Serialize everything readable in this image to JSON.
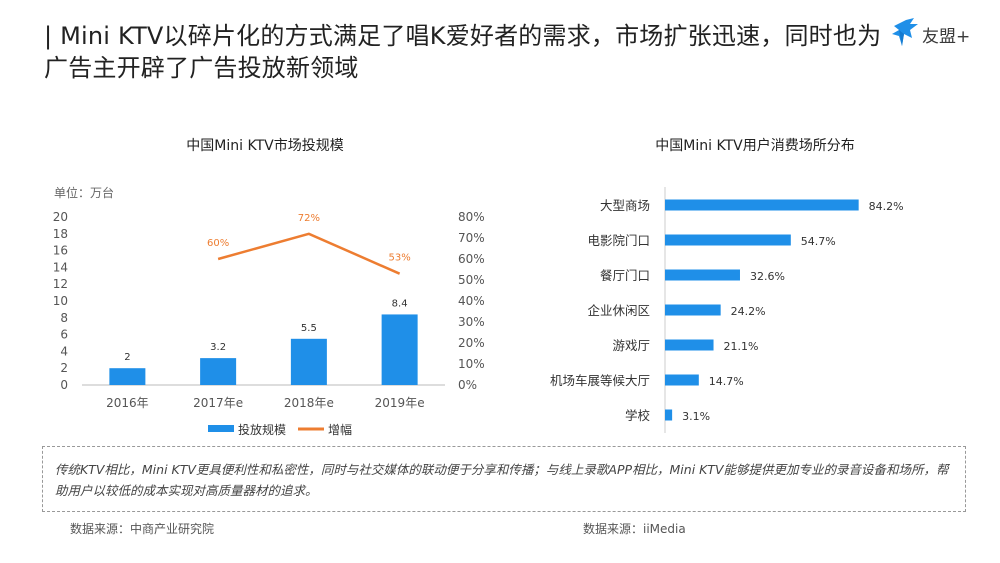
{
  "page": {
    "title": "| Mini KTV以碎片化的方式满足了唱K爱好者的需求，市场扩张迅速，同时也为广告主开辟了广告投放新领域",
    "logo_text": "友盟+",
    "accent_color": "#1f8fe8",
    "line_color": "#ed7d31",
    "note": "传统KTV相比，Mini KTV更具便利性和私密性，同时与社交媒体的联动便于分享和传播；与线上录歌APP相比，Mini KTV能够提供更加专业的录音设备和场所，帮助用户以较低的成本实现对高质量器材的追求。",
    "source_left": "数据来源：中商产业研究院",
    "source_right": "数据来源：iiMedia"
  },
  "chart_data": [
    {
      "type": "bar",
      "title": "中国Mini KTV市场投规模",
      "unit_label": "单位：万台",
      "categories": [
        "2016年",
        "2017年e",
        "2018年e",
        "2019年e"
      ],
      "series": [
        {
          "name": "投放规模",
          "kind": "bar",
          "axis": "left",
          "values": [
            2,
            3.2,
            5.5,
            8.4
          ],
          "labels": [
            "2",
            "3.2",
            "5.5",
            "8.4"
          ]
        },
        {
          "name": "增幅",
          "kind": "line",
          "axis": "right",
          "values": [
            null,
            60,
            72,
            53
          ],
          "labels": [
            "",
            "60%",
            "72%",
            "53%"
          ]
        }
      ],
      "ylim": [
        0,
        20
      ],
      "yticks": [
        "0",
        "2",
        "4",
        "6",
        "8",
        "10",
        "12",
        "14",
        "16",
        "18",
        "20"
      ],
      "y2lim": [
        0,
        80
      ],
      "y2ticks": [
        "0%",
        "10%",
        "20%",
        "30%",
        "40%",
        "50%",
        "60%",
        "70%",
        "80%"
      ],
      "legend": [
        "投放规模",
        "增幅"
      ]
    },
    {
      "type": "bar",
      "orientation": "horizontal",
      "title": "中国Mini KTV用户消费场所分布",
      "categories": [
        "大型商场",
        "电影院门口",
        "餐厅门口",
        "企业休闲区",
        "游戏厅",
        "机场车展等候大厅",
        "学校"
      ],
      "values": [
        84.2,
        54.7,
        32.6,
        24.2,
        21.1,
        14.7,
        3.1
      ],
      "labels": [
        "84.2%",
        "54.7%",
        "32.6%",
        "24.2%",
        "21.1%",
        "14.7%",
        "3.1%"
      ],
      "xlim": [
        0,
        100
      ]
    }
  ]
}
